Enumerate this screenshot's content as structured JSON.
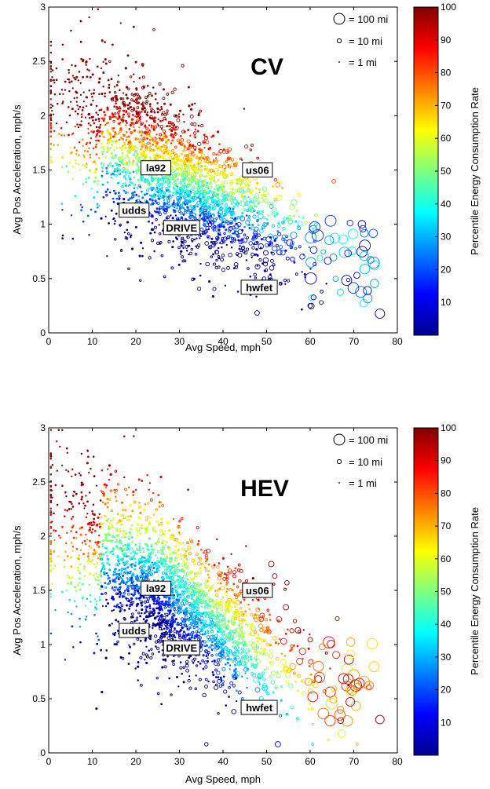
{
  "chart_data": [
    {
      "type": "scatter",
      "title": "CV",
      "xlabel": "Avg Speed, mph",
      "ylabel": "Avg Pos Acceleration, mph/s",
      "xlim": [
        0,
        80
      ],
      "ylim": [
        0,
        3
      ],
      "xticks": [
        "0",
        "10",
        "20",
        "30",
        "40",
        "50",
        "60",
        "70",
        "80"
      ],
      "yticks": [
        "0",
        "0.5",
        "1",
        "1.5",
        "2",
        "2.5",
        "3"
      ],
      "size_legend": [
        "= 100 mi",
        "= 10 mi",
        "= 1 mi"
      ],
      "size_legend_miles": [
        100,
        10,
        1
      ],
      "colorbar": {
        "label": "Percentile Energy Consumption Rate",
        "range": [
          0,
          100
        ],
        "ticks": [
          "10",
          "20",
          "30",
          "40",
          "50",
          "60",
          "70",
          "80",
          "90",
          "100"
        ],
        "colormap": "jet"
      },
      "grid": false,
      "cycles": [
        {
          "name": "la92",
          "x": 24.6,
          "y": 1.52
        },
        {
          "name": "us06",
          "x": 47.9,
          "y": 1.5
        },
        {
          "name": "udds",
          "x": 19.6,
          "y": 1.13
        },
        {
          "name": "DRIVE",
          "x": 30.5,
          "y": 0.97
        },
        {
          "name": "hwfet",
          "x": 48.3,
          "y": 0.42
        }
      ],
      "point_cloud": {
        "trips": "thousands of individual drive trips",
        "percentile_trend": "decreases with speed, increases with acceleration"
      }
    },
    {
      "type": "scatter",
      "title": "HEV",
      "xlabel": "Avg Speed, mph",
      "ylabel": "Avg Pos Acceleration, mph/s",
      "xlim": [
        0,
        80
      ],
      "ylim": [
        0,
        3
      ],
      "xticks": [
        "0",
        "10",
        "20",
        "30",
        "40",
        "50",
        "60",
        "70",
        "80"
      ],
      "yticks": [
        "0",
        "0.5",
        "1",
        "1.5",
        "2",
        "2.5",
        "3"
      ],
      "size_legend": [
        "= 100 mi",
        "= 10 mi",
        "= 1 mi"
      ],
      "size_legend_miles": [
        100,
        10,
        1
      ],
      "colorbar": {
        "label": "Percentile Energy Consumption Rate",
        "range": [
          0,
          100
        ],
        "ticks": [
          "10",
          "20",
          "30",
          "40",
          "50",
          "60",
          "70",
          "80",
          "90",
          "100"
        ],
        "colormap": "jet"
      },
      "grid": false,
      "cycles": [
        {
          "name": "la92",
          "x": 24.6,
          "y": 1.52
        },
        {
          "name": "us06",
          "x": 47.9,
          "y": 1.5
        },
        {
          "name": "udds",
          "x": 19.6,
          "y": 1.13
        },
        {
          "name": "DRIVE",
          "x": 30.5,
          "y": 0.97
        },
        {
          "name": "hwfet",
          "x": 48.3,
          "y": 0.42
        }
      ],
      "point_cloud": {
        "trips": "thousands of individual drive trips",
        "percentile_trend": "low near 25 mph, rising at low and high speed"
      }
    }
  ]
}
